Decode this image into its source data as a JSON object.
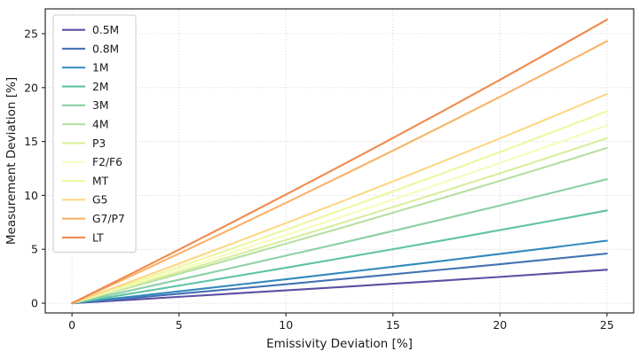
{
  "chart_data": {
    "type": "line",
    "title": "",
    "xlabel": "Emissivity Deviation [%]",
    "ylabel": "Measurement Deviation [%]",
    "xlim": [
      -1.25,
      26.25
    ],
    "ylim": [
      -0.9,
      27.3
    ],
    "xticks": [
      0,
      5,
      10,
      15,
      20,
      25
    ],
    "ytick_labels": [
      "0",
      "5",
      "10",
      "15",
      "20",
      "25"
    ],
    "xtick_labels": [
      "0",
      "5",
      "10",
      "15",
      "20",
      "25"
    ],
    "yticks": [
      0,
      5,
      10,
      15,
      20,
      25
    ],
    "grid": "dotted",
    "legend_position": "upper-left",
    "x": [
      0,
      2.5,
      5,
      7.5,
      10,
      12.5,
      15,
      17.5,
      20,
      22.5,
      25
    ],
    "series": [
      {
        "name": "0.5M",
        "color": "#5b50a3",
        "end_value": 3.1,
        "values": [
          0,
          0.29,
          0.59,
          0.89,
          1.19,
          1.49,
          1.81,
          2.12,
          2.44,
          2.77,
          3.1
        ]
      },
      {
        "name": "0.8M",
        "color": "#4572b2",
        "end_value": 4.6,
        "values": [
          0,
          0.43,
          0.87,
          1.31,
          1.76,
          2.22,
          2.68,
          3.15,
          3.62,
          4.11,
          4.6
        ]
      },
      {
        "name": "1M",
        "color": "#3289bd",
        "end_value": 5.8,
        "values": [
          0,
          0.55,
          1.1,
          1.66,
          2.22,
          2.8,
          3.38,
          3.97,
          4.57,
          5.18,
          5.8
        ]
      },
      {
        "name": "2M",
        "color": "#5ec2a5",
        "end_value": 8.6,
        "values": [
          0,
          0.81,
          1.63,
          2.46,
          3.29,
          4.15,
          5.01,
          5.89,
          6.78,
          7.68,
          8.6
        ]
      },
      {
        "name": "3M",
        "color": "#8bd0a4",
        "end_value": 11.5,
        "values": [
          0,
          1.08,
          2.18,
          3.28,
          4.41,
          5.54,
          6.7,
          7.87,
          9.06,
          10.27,
          11.5
        ]
      },
      {
        "name": "4M",
        "color": "#b5e0a2",
        "end_value": 14.4,
        "values": [
          0,
          1.35,
          2.72,
          4.11,
          5.52,
          6.94,
          8.39,
          9.86,
          11.35,
          12.86,
          14.4
        ]
      },
      {
        "name": "P3",
        "color": "#d8ee9d",
        "end_value": 15.3,
        "values": [
          0,
          1.44,
          2.89,
          4.37,
          5.86,
          7.38,
          8.91,
          10.47,
          12.05,
          13.66,
          15.3
        ]
      },
      {
        "name": "F2/F6",
        "color": "#f7fbba",
        "end_value": 16.5,
        "values": [
          0,
          1.55,
          3.12,
          4.71,
          6.32,
          7.95,
          9.61,
          11.29,
          13.0,
          14.74,
          16.5
        ]
      },
      {
        "name": "MT",
        "color": "#edf7a0",
        "end_value": 17.8,
        "values": [
          0,
          1.67,
          3.37,
          5.08,
          6.82,
          8.58,
          10.37,
          12.18,
          14.02,
          15.9,
          17.8
        ]
      },
      {
        "name": "G5",
        "color": "#fdd783",
        "end_value": 19.4,
        "values": [
          0,
          1.82,
          3.67,
          5.54,
          7.43,
          9.35,
          11.3,
          13.28,
          15.28,
          17.33,
          19.4
        ]
      },
      {
        "name": "G7/P7",
        "color": "#fab167",
        "end_value": 24.3,
        "values": [
          0,
          2.28,
          4.6,
          6.94,
          9.31,
          11.72,
          14.15,
          16.63,
          19.14,
          21.7,
          24.3
        ]
      },
      {
        "name": "LT",
        "color": "#f18a4d",
        "end_value": 26.3,
        "values": [
          0,
          2.47,
          4.97,
          7.51,
          10.08,
          12.68,
          15.32,
          18.0,
          20.72,
          23.49,
          26.3
        ]
      }
    ],
    "colors": {
      "grid": "#cbcbcb",
      "spine": "#3b3b3b",
      "tick": "#333333",
      "text": "#1a1a1a",
      "legend_border": "#cccccc",
      "legend_bg": "#ffffff"
    }
  }
}
